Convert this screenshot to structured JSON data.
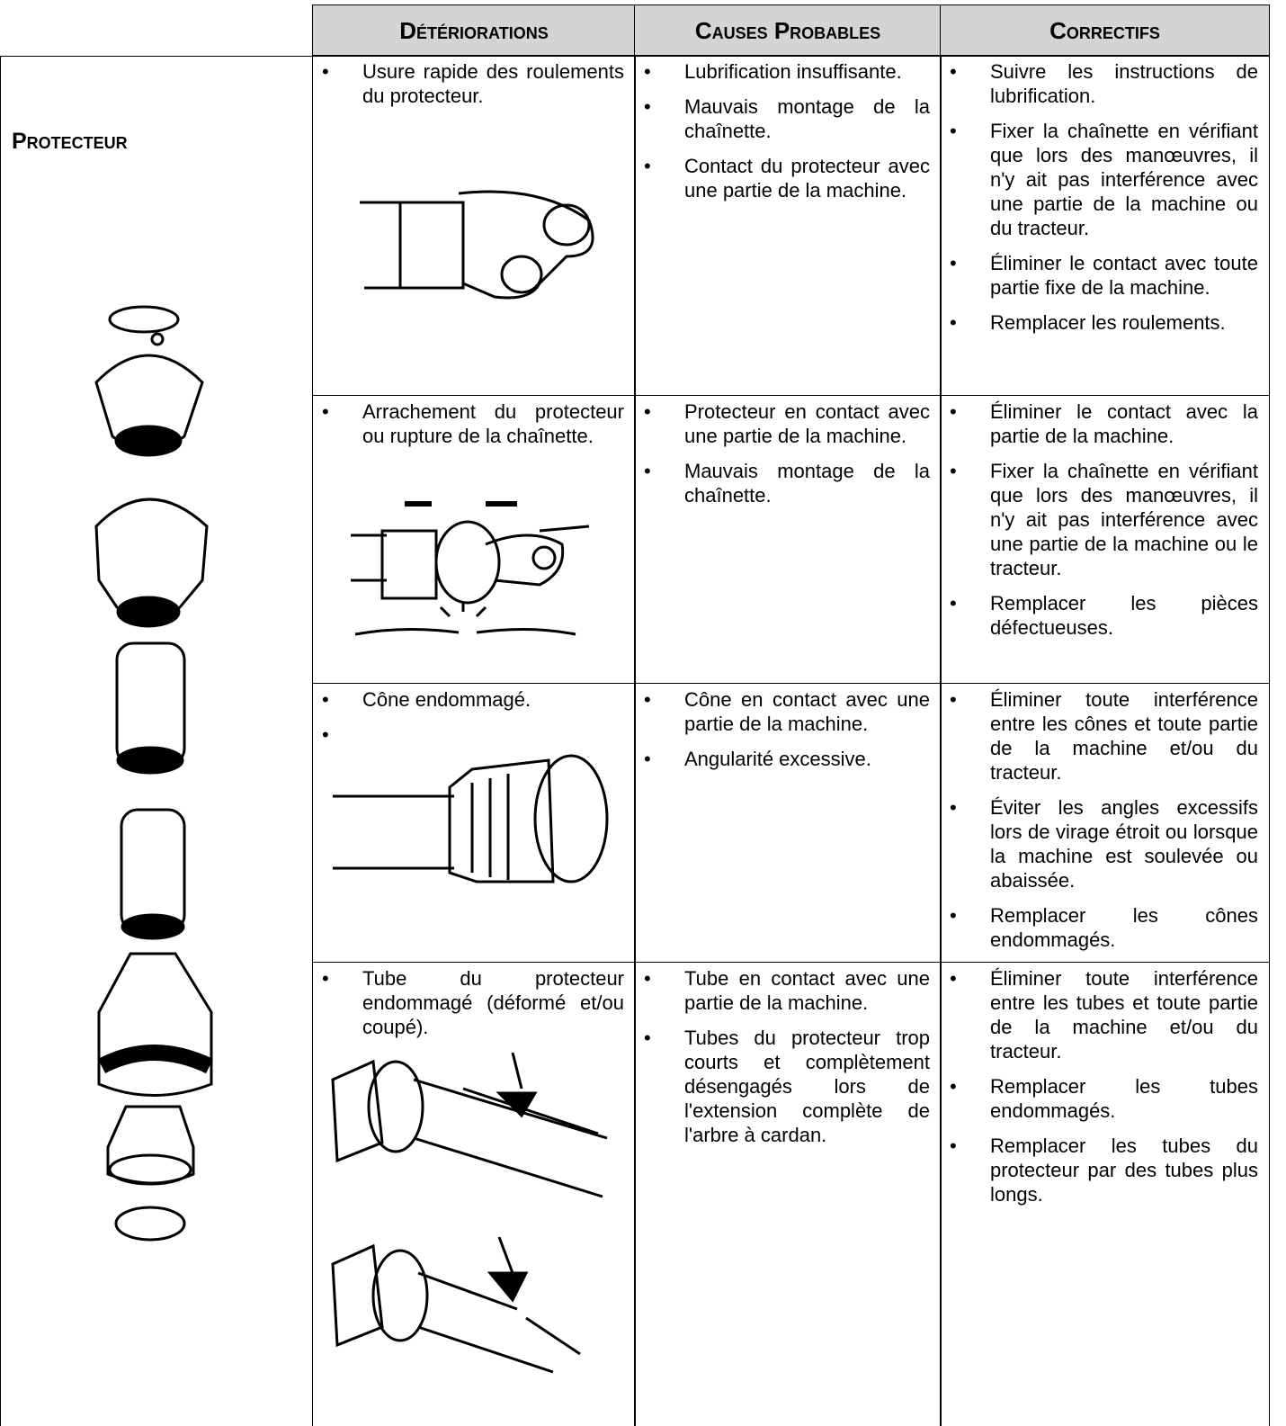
{
  "header": {
    "columns": [
      "Détériorations",
      "Causes Probables",
      "Correctifs"
    ]
  },
  "section": {
    "title": "Protecteur"
  },
  "rows": [
    {
      "damage": [
        "Usure rapide des roulements du protecteur."
      ],
      "causes": [
        "Lubrification insuffisante.",
        "Mauvais montage de la chaînette.",
        "Contact du protecteur avec une partie de la machine."
      ],
      "fixes": [
        "Suivre les instructions de lubrification.",
        "Fixer la chaînette en vérifiant que lors des manœuvres, il n'y ait pas interférence avec une partie de la machine ou du tracteur.",
        "Éliminer le contact avec toute partie fixe de la machine.",
        "Remplacer les roulements."
      ]
    },
    {
      "damage": [
        "Arrachement du protecteur ou rupture de la chaînette."
      ],
      "causes": [
        "Protecteur en contact avec une partie de la machine.",
        "Mauvais montage de la chaînette."
      ],
      "fixes": [
        "Éliminer le contact avec la partie de la machine.",
        "Fixer la chaînette en vérifiant que lors des manœuvres, il n'y ait pas interférence avec une partie de la machine ou le tracteur.",
        "Remplacer les pièces défectueuses."
      ]
    },
    {
      "damage": [
        "Cône endommagé."
      ],
      "causes": [
        "Cône en contact avec une partie de la machine.",
        "Angularité excessive."
      ],
      "fixes": [
        "Éliminer toute interférence entre les cônes et toute partie de la machine et/ou du tracteur.",
        "Éviter les angles excessifs lors de virage étroit ou lorsque la machine est soulevée ou abaissée.",
        "Remplacer les cônes endommagés."
      ]
    },
    {
      "damage": [
        "Tube du protecteur endommagé (déformé et/ou coupé)."
      ],
      "causes": [
        "Tube en contact avec une partie de la machine.",
        "Tubes du protecteur trop courts et complètement désengagés lors de l'extension complète de l'arbre à cardan."
      ],
      "fixes": [
        "Éliminer toute interférence entre les tubes et toute partie de la machine et/ou du tracteur.",
        "Remplacer les tubes endommagés.",
        "Remplacer les tubes du protecteur par des tubes plus longs."
      ]
    }
  ]
}
